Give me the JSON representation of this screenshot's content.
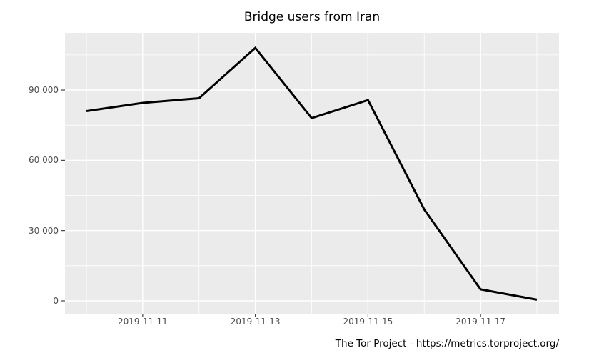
{
  "title": "Bridge users from Iran",
  "footer": "The Tor Project - https://metrics.torproject.org/",
  "chart_data": {
    "type": "line",
    "title": "Bridge users from Iran",
    "x": [
      "2019-11-10",
      "2019-11-11",
      "2019-11-12",
      "2019-11-13",
      "2019-11-14",
      "2019-11-15",
      "2019-11-16",
      "2019-11-17",
      "2019-11-18"
    ],
    "series": [
      {
        "name": "bridge-users-iran",
        "values": [
          81000,
          84500,
          86500,
          108000,
          78000,
          85700,
          39000,
          4900,
          500
        ]
      }
    ],
    "xlabel": "",
    "ylabel": "",
    "ylim": [
      0,
      114000
    ],
    "y_major_ticks": [
      0,
      30000,
      60000,
      90000
    ],
    "y_tick_labels": [
      "0",
      "30 000",
      "60 000",
      "90 000"
    ],
    "y_minor_ticks": [
      15000,
      45000,
      75000,
      105000
    ],
    "x_major_tick_labels": [
      "2019-11-11",
      "2019-11-13",
      "2019-11-15",
      "2019-11-17"
    ],
    "x_major_tick_days": [
      1,
      3,
      5,
      7
    ],
    "x_minor_tick_days": [
      0,
      2,
      4,
      6,
      8
    ],
    "grid": "major-and-minor-white-on-gray",
    "legend": "none",
    "colors": {
      "line": "#000000",
      "panel_background": "#EBEBEB",
      "gridline": "#FFFFFF",
      "tick_label": "#4D4D4D",
      "tick_mark": "#333333",
      "title_text": "#000000",
      "footer_text": "#000000",
      "page_background": "#FFFFFF"
    }
  }
}
